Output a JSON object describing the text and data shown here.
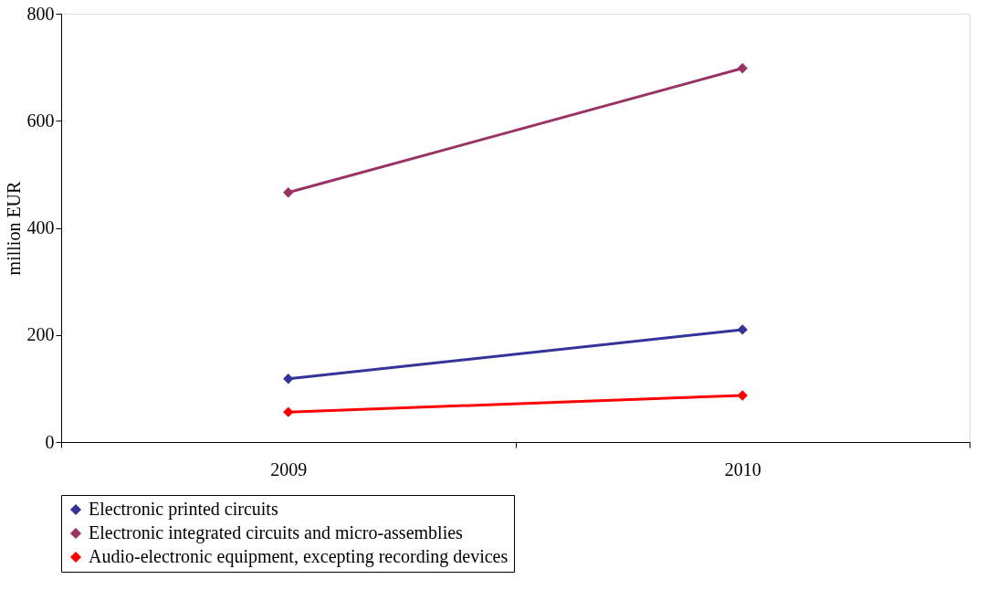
{
  "chart_data": {
    "type": "line",
    "ylabel": "million EUR",
    "categories": [
      "2009",
      "2010"
    ],
    "series": [
      {
        "name": "Electronic printed circuits",
        "color": "#333399",
        "values": [
          118,
          210
        ]
      },
      {
        "name": "Electronic integrated circuits and micro-assemblies",
        "color": "#993366",
        "values": [
          466,
          698
        ]
      },
      {
        "name": "Audio-electronic equipment, excepting recording devices",
        "color": "#ff0000",
        "values": [
          56,
          87
        ]
      }
    ],
    "ylim": [
      0,
      800
    ],
    "yticks": [
      0,
      200,
      400,
      600,
      800
    ],
    "grid": false,
    "legend": "bottom",
    "marker": "diamond",
    "line_style": "solid"
  }
}
